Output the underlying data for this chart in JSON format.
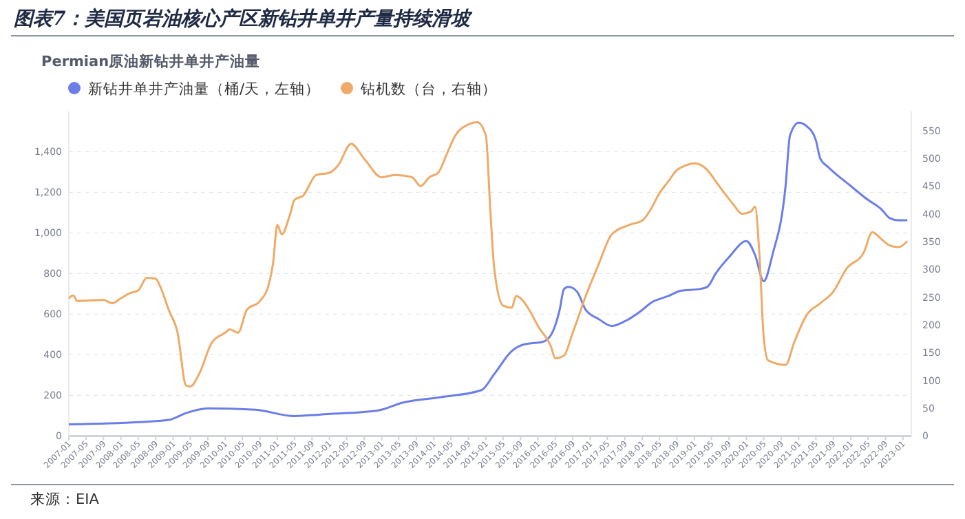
{
  "chart_data": {
    "type": "line",
    "title": "图表7：美国页岩油核心产区新钻井单井产量持续滑坡",
    "subtitle": "Permian原油新钻井单井产油量",
    "annotations": [
      "来源：EIA"
    ],
    "legend": "top left",
    "grid": "y",
    "marker": "none",
    "line_style": "solid",
    "xlim": [
      "2007-01",
      "2023-03"
    ],
    "xticks": [
      "2007-01",
      "2007-05",
      "2007-09",
      "2008-01",
      "2008-05",
      "2008-09",
      "2009-01",
      "2009-05",
      "2009-09",
      "2010-01",
      "2010-05",
      "2010-09",
      "2011-01",
      "2011-05",
      "2011-09",
      "2012-01",
      "2012-05",
      "2012-09",
      "2013-01",
      "2013-05",
      "2013-09",
      "2014-01",
      "2014-05",
      "2014-09",
      "2015-01",
      "2015-05",
      "2015-09",
      "2016-01",
      "2016-05",
      "2016-09",
      "2017-01",
      "2017-05",
      "2017-09",
      "2018-01",
      "2018-05",
      "2018-09",
      "2019-01",
      "2019-05",
      "2019-09",
      "2020-01",
      "2020-05",
      "2020-09",
      "2021-01",
      "2021-05",
      "2021-09",
      "2022-01",
      "2022-05",
      "2022-09",
      "2023-01"
    ],
    "ylim": [
      0,
      1600
    ],
    "yticks": [
      0,
      {
        "value": 200,
        "label": "200"
      },
      {
        "value": 400,
        "label": "400"
      },
      {
        "value": 600,
        "label": "600"
      },
      {
        "value": 800,
        "label": "800"
      },
      {
        "value": 1000,
        "label": "1,000"
      },
      {
        "value": 1200,
        "label": "1,200"
      },
      {
        "value": 1400,
        "label": "1,400"
      }
    ],
    "y2lim": [
      0,
      585
    ],
    "y2ticks": [
      0,
      50,
      100,
      150,
      200,
      250,
      300,
      350,
      400,
      450,
      500,
      550
    ],
    "series": [
      {
        "name": "新钻井单井产油量（桶/天，左轴）",
        "color": "#6b7de8",
        "x": [
          "2007-01",
          "2008-05",
          "2008-12",
          "2009-04",
          "2009-09",
          "2010-08",
          "2011-05",
          "2011-11",
          "2012-12",
          "2013-06",
          "2014-03",
          "2014-12",
          "2015-03",
          "2015-07",
          "2015-10",
          "2016-02",
          "2016-04",
          "2016-06",
          "2016-07",
          "2016-08",
          "2016-10",
          "2016-12",
          "2017-03",
          "2017-06",
          "2017-09",
          "2018-01",
          "2018-03",
          "2018-07",
          "2018-10",
          "2019-02",
          "2019-04",
          "2019-06",
          "2019-09",
          "2020-01",
          "2020-03",
          "2020-05",
          "2020-07",
          "2020-10",
          "2020-11",
          "2021-01",
          "2021-03",
          "2021-05",
          "2021-06",
          "2021-08",
          "2022-01",
          "2022-05",
          "2022-08",
          "2022-10",
          "2022-12",
          "2023-02"
        ],
        "values": [
          57,
          68,
          79,
          113,
          136,
          129,
          98,
          106,
          125,
          165,
          192,
          226,
          305,
          418,
          452,
          463,
          497,
          621,
          723,
          734,
          711,
          621,
          576,
          542,
          565,
          621,
          655,
          689,
          716,
          723,
          734,
          802,
          881,
          960,
          892,
          762,
          892,
          1231,
          1480,
          1543,
          1524,
          1457,
          1366,
          1321,
          1231,
          1163,
          1118,
          1073,
          1062,
          1062
        ]
      },
      {
        "name": "钻机数（台，右轴）",
        "color": "#eeaa66",
        "axis": "y2",
        "x": [
          "2007-01",
          "2007-02",
          "2007-03",
          "2007-09",
          "2007-11",
          "2008-01",
          "2008-03",
          "2008-05",
          "2008-07",
          "2008-09",
          "2008-10",
          "2008-12",
          "2009-02",
          "2009-04",
          "2009-05",
          "2009-07",
          "2009-10",
          "2010-01",
          "2010-02",
          "2010-04",
          "2010-06",
          "2010-09",
          "2010-11",
          "2010-12",
          "2011-01",
          "2011-02",
          "2011-04",
          "2011-05",
          "2011-07",
          "2011-10",
          "2012-01",
          "2012-03",
          "2012-06",
          "2012-09",
          "2013-01",
          "2013-04",
          "2013-08",
          "2013-10",
          "2013-12",
          "2014-02",
          "2014-04",
          "2014-06",
          "2014-09",
          "2014-11",
          "2015-01",
          "2015-02",
          "2015-03",
          "2015-05",
          "2015-07",
          "2015-08",
          "2015-09",
          "2015-11",
          "2016-01",
          "2016-04",
          "2016-05",
          "2016-07",
          "2016-09",
          "2016-12",
          "2017-03",
          "2017-06",
          "2017-10",
          "2018-01",
          "2018-03",
          "2018-05",
          "2018-07",
          "2018-09",
          "2018-11",
          "2019-01",
          "2019-04",
          "2019-06",
          "2019-08",
          "2019-10",
          "2019-12",
          "2020-02",
          "2020-03",
          "2020-04",
          "2020-05",
          "2020-06",
          "2020-10",
          "2020-12",
          "2021-03",
          "2021-06",
          "2021-09",
          "2021-12",
          "2022-04",
          "2022-06",
          "2022-08",
          "2022-10",
          "2022-12",
          "2023-02"
        ],
        "values": [
          248,
          253,
          243,
          245,
          239,
          248,
          257,
          262,
          285,
          283,
          270,
          227,
          186,
          91,
          89,
          111,
          169,
          186,
          192,
          186,
          227,
          243,
          272,
          309,
          380,
          363,
          400,
          425,
          433,
          470,
          474,
          487,
          526,
          499,
          466,
          470,
          466,
          450,
          466,
          474,
          507,
          541,
          561,
          565,
          541,
          408,
          301,
          235,
          231,
          252,
          248,
          227,
          198,
          161,
          140,
          145,
          186,
          252,
          309,
          363,
          380,
          388,
          408,
          437,
          458,
          479,
          487,
          491,
          479,
          458,
          437,
          417,
          400,
          404,
          413,
          326,
          177,
          136,
          128,
          169,
          219,
          239,
          260,
          301,
          330,
          367,
          355,
          343,
          340,
          351
        ]
      }
    ]
  }
}
